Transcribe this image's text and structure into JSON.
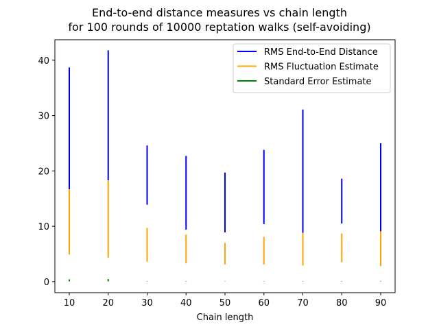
{
  "chart_data": {
    "type": "line",
    "title": "End-to-end distance measures vs chain length\nfor 100 rounds of 10000 reptation walks (self-avoiding)",
    "xlabel": "Chain length",
    "ylabel": "",
    "xlim": [
      6.3,
      93.7
    ],
    "ylim": [
      -2.0,
      43.7
    ],
    "xticks": [
      10,
      20,
      30,
      40,
      50,
      60,
      70,
      80,
      90
    ],
    "yticks": [
      0,
      10,
      20,
      30,
      40
    ],
    "grid": false,
    "legend_position": "top-right",
    "series": [
      {
        "name": "RMS End-to-End Distance",
        "color": "#0000ff",
        "points": [
          {
            "x": 10,
            "ymin": 16.7,
            "ymax": 38.7
          },
          {
            "x": 20,
            "ymin": 18.3,
            "ymax": 41.8
          },
          {
            "x": 30,
            "ymin": 13.9,
            "ymax": 24.6
          },
          {
            "x": 40,
            "ymin": 9.4,
            "ymax": 22.7
          },
          {
            "x": 50,
            "ymin": 8.9,
            "ymax": 19.7
          },
          {
            "x": 60,
            "ymin": 10.4,
            "ymax": 23.8
          },
          {
            "x": 70,
            "ymin": 8.8,
            "ymax": 31.1
          },
          {
            "x": 80,
            "ymin": 10.5,
            "ymax": 18.6
          },
          {
            "x": 90,
            "ymin": 9.1,
            "ymax": 25.0
          }
        ]
      },
      {
        "name": "RMS Fluctuation Estimate",
        "color": "#ffa500",
        "points": [
          {
            "x": 10,
            "ymin": 4.9,
            "ymax": 16.7
          },
          {
            "x": 20,
            "ymin": 4.3,
            "ymax": 18.3
          },
          {
            "x": 30,
            "ymin": 3.6,
            "ymax": 9.7
          },
          {
            "x": 40,
            "ymin": 3.3,
            "ymax": 8.5
          },
          {
            "x": 50,
            "ymin": 3.1,
            "ymax": 7.0
          },
          {
            "x": 60,
            "ymin": 3.1,
            "ymax": 8.1
          },
          {
            "x": 70,
            "ymin": 2.9,
            "ymax": 8.8
          },
          {
            "x": 80,
            "ymin": 3.5,
            "ymax": 8.7
          },
          {
            "x": 90,
            "ymin": 2.8,
            "ymax": 9.1
          }
        ]
      },
      {
        "name": "Standard Error Estimate",
        "color": "#008000",
        "points": [
          {
            "x": 10,
            "ymin": 0.05,
            "ymax": 0.4
          },
          {
            "x": 20,
            "ymin": 0.05,
            "ymax": 0.45
          },
          {
            "x": 30,
            "ymin": 0.04,
            "ymax": 0.1
          },
          {
            "x": 40,
            "ymin": 0.03,
            "ymax": 0.09
          },
          {
            "x": 50,
            "ymin": 0.03,
            "ymax": 0.07
          },
          {
            "x": 60,
            "ymin": 0.03,
            "ymax": 0.08
          },
          {
            "x": 70,
            "ymin": 0.03,
            "ymax": 0.09
          },
          {
            "x": 80,
            "ymin": 0.03,
            "ymax": 0.09
          },
          {
            "x": 90,
            "ymin": 0.03,
            "ymax": 0.09
          }
        ]
      }
    ]
  }
}
